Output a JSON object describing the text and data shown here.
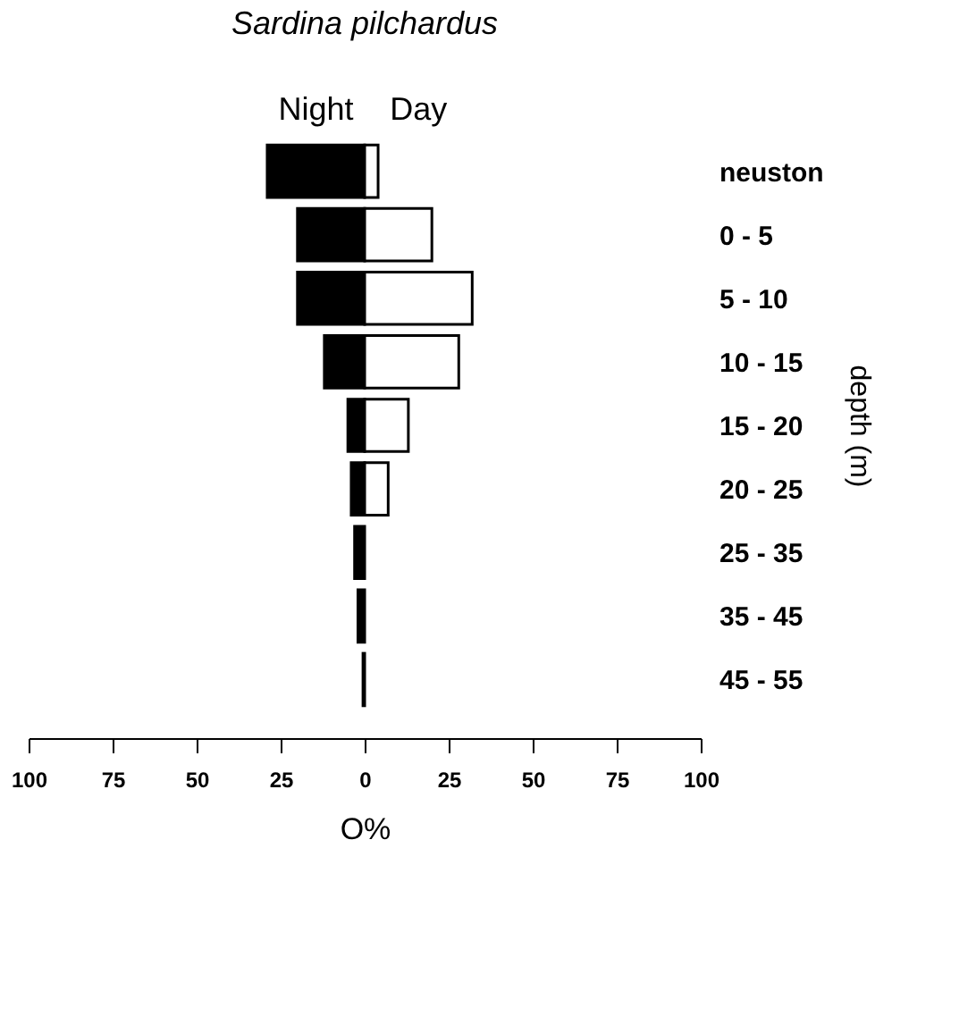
{
  "chart_data": {
    "type": "bar",
    "orientation": "horizontal",
    "stacked": true,
    "title": "Sardina pilchardus",
    "xlabel": "O%",
    "ylabel": "depth (m)",
    "categories": [
      "neuston",
      "0 - 5",
      "5 - 10",
      "10 - 15",
      "15 - 20",
      "20 - 25",
      "25 - 35",
      "35 - 45",
      "45 - 55"
    ],
    "series": [
      {
        "name": "Night",
        "color": "#000000",
        "values": [
          -29,
          -20,
          -20,
          -12,
          -5,
          -4,
          -3,
          -2,
          -0.5
        ]
      },
      {
        "name": "Day",
        "color": "#ffffff",
        "values": [
          4,
          20,
          32,
          28,
          13,
          7,
          null,
          null,
          null
        ]
      }
    ],
    "xlim": [
      -100,
      100
    ],
    "xticks": [
      {
        "value": -100,
        "label": "100"
      },
      {
        "value": -75,
        "label": "75"
      },
      {
        "value": -50,
        "label": "50"
      },
      {
        "value": -25,
        "label": "25"
      },
      0,
      25,
      50,
      75,
      100
    ],
    "grid": false
  }
}
